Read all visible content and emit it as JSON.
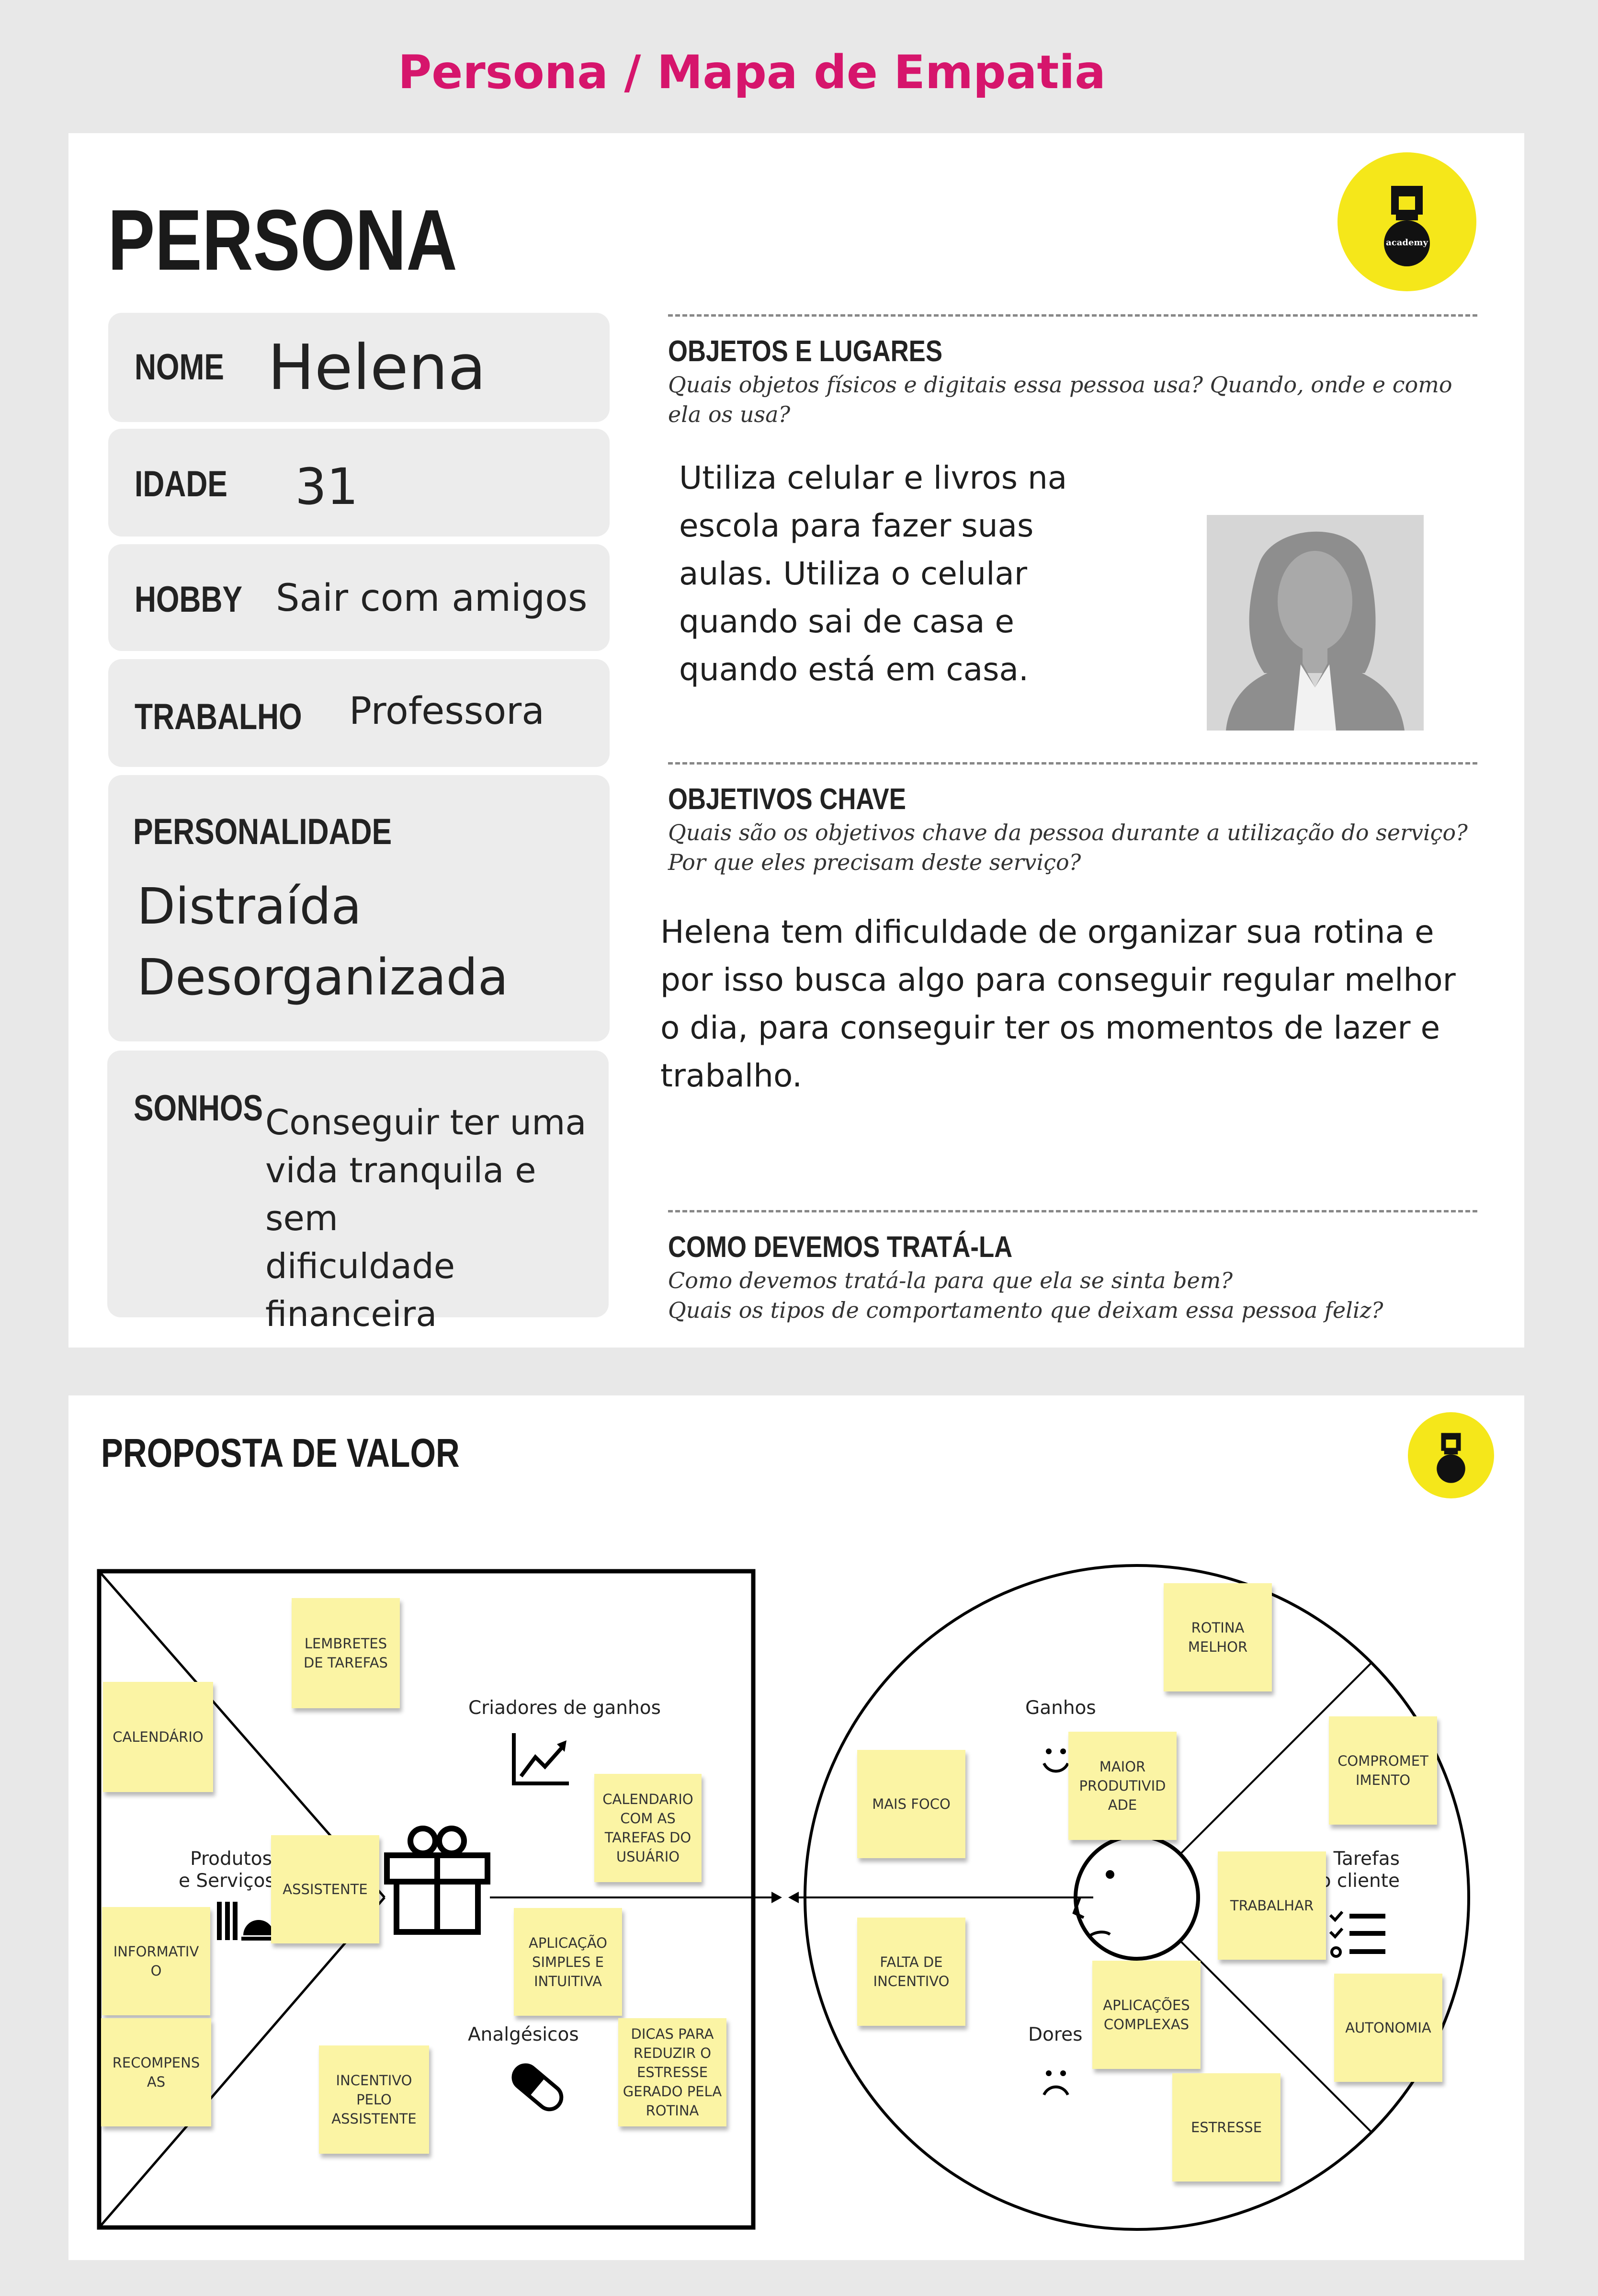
{
  "page_title": "Persona / Mapa de Empatia",
  "persona": {
    "title": "PERSONA",
    "logo_text": "academy",
    "fields": {
      "nome": {
        "label": "NOME",
        "value": "Helena"
      },
      "idade": {
        "label": "IDADE",
        "value": "31"
      },
      "hobby": {
        "label": "HOBBY",
        "value": "Sair com amigos"
      },
      "trabalho": {
        "label": "TRABALHO",
        "value": "Professora"
      },
      "personalidade": {
        "label": "PERSONALIDADE",
        "value_lines": [
          "Distraída",
          "Desorganizada"
        ]
      },
      "sonhos": {
        "label": "SONHOS",
        "value_lines": [
          "Conseguir ter uma",
          "vida tranquila e sem",
          "dificuldade",
          "financeira"
        ]
      }
    },
    "objetos": {
      "heading": "OBJETOS E LUGARES",
      "subtitle_lines": [
        "Quais objetos físicos e digitais essa pessoa usa? Quando, onde e como",
        "ela os usa?"
      ],
      "text_lines": [
        "Utiliza celular e livros na",
        "escola para fazer suas",
        "aulas. Utiliza o celular",
        "quando sai de casa e",
        "quando está em casa."
      ]
    },
    "objetivos": {
      "heading": "OBJETIVOS CHAVE",
      "subtitle_lines": [
        "Quais são os objetivos chave da pessoa durante a utilização do serviço?",
        "Por que eles precisam deste serviço?"
      ],
      "text_lines": [
        "Helena tem dificuldade de organizar sua rotina e",
        "por isso busca algo para conseguir regular melhor",
        "o dia, para conseguir ter os momentos de lazer e",
        "trabalho."
      ]
    },
    "tratar": {
      "heading": "COMO DEVEMOS TRATÁ-LA",
      "subtitle_lines": [
        "Como devemos tratá-la para que ela se sinta bem?",
        "Quais os tipos de comportamento que deixam essa pessoa feliz?"
      ]
    }
  },
  "value": {
    "title": "PROPOSTA DE VALOR",
    "labels": {
      "criadores": "Criadores de ganhos",
      "produtos": [
        "Produtos",
        "e Serviços"
      ],
      "analgesicos": "Analgésicos",
      "ganhos": "Ganhos",
      "tarefas": [
        "Tarefas",
        "do cliente"
      ],
      "dores": "Dores"
    },
    "stickies": {
      "lembretes": "LEMBRETES DE TAREFAS",
      "calendario": "CALENDÁRIO",
      "cal_tarefas": "CALENDARIO COM AS TAREFAS DO USUÁRIO",
      "assistente": "ASSISTENTE",
      "informativo": "INFORMATIV O",
      "aplicacao": "APLICAÇÃO SIMPLES E INTUITIVA",
      "recompensas": "RECOMPENS AS",
      "incentivo_assist": "INCENTIVO PELO ASSISTENTE",
      "dicas": "DICAS PARA REDUZIR O ESTRESSE GERADO PELA ROTINA",
      "rotina": "ROTINA MELHOR",
      "mais_foco": "MAIS FOCO",
      "maior_prod": "MAIOR PRODUTIVID ADE",
      "comprometimento": "COMPROMET IMENTO",
      "trabalhar": "TRABALHAR",
      "falta_incentivo": "FALTA DE INCENTIVO",
      "apps_complexas": "APLICAÇÕES COMPLEXAS",
      "autonomia": "AUTONOMIA",
      "estresse": "ESTRESSE"
    }
  }
}
